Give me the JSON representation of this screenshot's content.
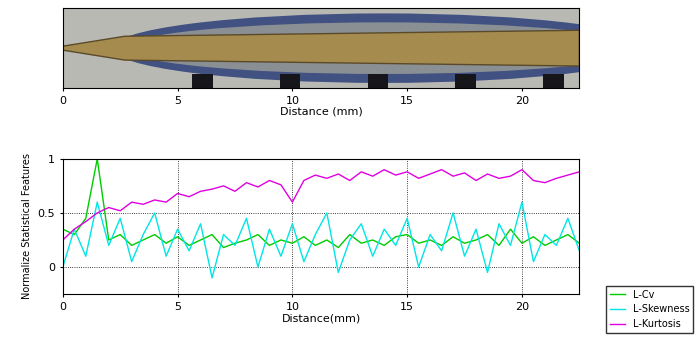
{
  "chart_data": [
    {
      "type": "image",
      "x_label": "Distance (mm)",
      "xlim": [
        0,
        22.5
      ],
      "xticks": [
        0,
        5,
        10,
        15,
        20
      ],
      "tick_labels": "x"
    },
    {
      "type": "line",
      "x_label": "Distance(mm)",
      "y_label": "Normalize Statistical Features",
      "xlim": [
        0,
        22.5
      ],
      "xticks": [
        0,
        5,
        10,
        15,
        20
      ],
      "ylim": [
        -0.25,
        1
      ],
      "yticks": [
        0,
        0.5,
        1
      ],
      "grid": true,
      "legend": "lower right",
      "x": [
        0,
        0.5,
        1,
        1.5,
        2,
        2.5,
        3,
        3.5,
        4,
        4.5,
        5,
        5.5,
        6,
        6.5,
        7,
        7.5,
        8,
        8.5,
        9,
        9.5,
        10,
        10.5,
        11,
        11.5,
        12,
        12.5,
        13,
        13.5,
        14,
        14.5,
        15,
        15.5,
        16,
        16.5,
        17,
        17.5,
        18,
        18.5,
        19,
        19.5,
        20,
        20.5,
        21,
        21.5,
        22,
        22.5
      ],
      "series": [
        {
          "name": "L-Cv",
          "color": "#00cc00",
          "values": [
            0.35,
            0.3,
            0.45,
            1.0,
            0.25,
            0.3,
            0.2,
            0.25,
            0.3,
            0.22,
            0.28,
            0.2,
            0.25,
            0.3,
            0.18,
            0.22,
            0.25,
            0.3,
            0.2,
            0.25,
            0.22,
            0.28,
            0.2,
            0.25,
            0.18,
            0.3,
            0.22,
            0.25,
            0.2,
            0.28,
            0.3,
            0.22,
            0.25,
            0.2,
            0.28,
            0.22,
            0.25,
            0.3,
            0.2,
            0.35,
            0.22,
            0.28,
            0.2,
            0.25,
            0.3,
            0.22
          ]
        },
        {
          "name": "L-Skewness",
          "color": "#00e5e5",
          "values": [
            0.0,
            0.35,
            0.1,
            0.6,
            0.2,
            0.45,
            0.05,
            0.3,
            0.5,
            0.1,
            0.35,
            0.15,
            0.4,
            -0.1,
            0.3,
            0.2,
            0.45,
            0.0,
            0.35,
            0.1,
            0.4,
            0.05,
            0.3,
            0.5,
            -0.05,
            0.25,
            0.4,
            0.1,
            0.35,
            0.2,
            0.45,
            0.0,
            0.3,
            0.15,
            0.5,
            0.1,
            0.35,
            -0.05,
            0.4,
            0.2,
            0.6,
            0.05,
            0.3,
            0.2,
            0.45,
            0.15
          ]
        },
        {
          "name": "L-Kurtosis",
          "color": "#e000e0",
          "values": [
            0.25,
            0.35,
            0.42,
            0.5,
            0.55,
            0.52,
            0.6,
            0.58,
            0.62,
            0.6,
            0.68,
            0.65,
            0.7,
            0.72,
            0.75,
            0.7,
            0.78,
            0.74,
            0.8,
            0.76,
            0.6,
            0.8,
            0.85,
            0.82,
            0.86,
            0.8,
            0.88,
            0.84,
            0.9,
            0.85,
            0.88,
            0.82,
            0.86,
            0.9,
            0.84,
            0.87,
            0.8,
            0.86,
            0.82,
            0.84,
            0.9,
            0.8,
            0.78,
            0.82,
            0.85,
            0.88
          ]
        }
      ]
    }
  ]
}
